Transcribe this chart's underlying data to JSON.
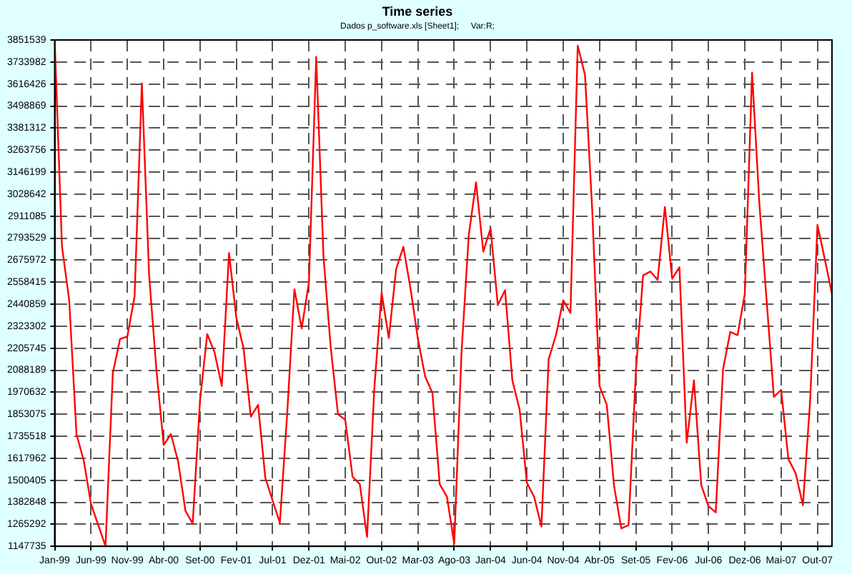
{
  "chart_data": {
    "type": "line",
    "title": "Time series",
    "subtitle": "Dados p_software.xls [Sheet1];     Var:R;",
    "x": [
      "1999-01",
      "1999-02",
      "1999-03",
      "1999-04",
      "1999-05",
      "1999-06",
      "1999-07",
      "1999-08",
      "1999-09",
      "1999-10",
      "1999-11",
      "1999-12",
      "2000-01",
      "2000-02",
      "2000-03",
      "2000-04",
      "2000-05",
      "2000-06",
      "2000-07",
      "2000-08",
      "2000-09",
      "2000-10",
      "2000-11",
      "2000-12",
      "2001-01",
      "2001-02",
      "2001-03",
      "2001-04",
      "2001-05",
      "2001-06",
      "2001-07",
      "2001-08",
      "2001-09",
      "2001-10",
      "2001-11",
      "2001-12",
      "2002-01",
      "2002-02",
      "2002-03",
      "2002-04",
      "2002-05",
      "2002-06",
      "2002-07",
      "2002-08",
      "2002-09",
      "2002-10",
      "2002-11",
      "2002-12",
      "2003-01",
      "2003-02",
      "2003-03",
      "2003-04",
      "2003-05",
      "2003-06",
      "2003-07",
      "2003-08",
      "2003-09",
      "2003-10",
      "2003-11",
      "2003-12",
      "2004-01",
      "2004-02",
      "2004-03",
      "2004-04",
      "2004-05",
      "2004-06",
      "2004-07",
      "2004-08",
      "2004-09",
      "2004-10",
      "2004-11",
      "2004-12",
      "2005-01",
      "2005-02",
      "2005-03",
      "2005-04",
      "2005-05",
      "2005-06",
      "2005-07",
      "2005-08",
      "2005-09",
      "2005-10",
      "2005-11",
      "2005-12",
      "2006-01",
      "2006-02",
      "2006-03",
      "2006-04",
      "2006-05",
      "2006-06",
      "2006-07",
      "2006-08",
      "2006-09",
      "2006-10",
      "2006-11",
      "2006-12",
      "2007-01",
      "2007-02",
      "2007-03",
      "2007-04",
      "2007-05",
      "2007-06",
      "2007-07",
      "2007-08",
      "2007-09",
      "2007-10",
      "2007-11",
      "2007-12"
    ],
    "series": [
      {
        "color": "#ff0000",
        "values": [
          3851539,
          2751000,
          2462000,
          1747000,
          1606000,
          1374000,
          1261000,
          1148000,
          2072000,
          2255000,
          2268000,
          2482000,
          3620000,
          2595000,
          2092000,
          1689000,
          1747000,
          1600000,
          1337000,
          1269000,
          1923000,
          2281000,
          2185000,
          2004000,
          2714000,
          2369000,
          2205000,
          1840000,
          1903000,
          1512000,
          1392000,
          1274000,
          1853000,
          2520000,
          2311000,
          2557000,
          3761000,
          2696000,
          2210000,
          1853000,
          1823000,
          1520000,
          1480000,
          1198000,
          1991000,
          2502000,
          2260000,
          2628000,
          2747000,
          2520000,
          2255000,
          2054000,
          1966000,
          1480000,
          1412000,
          1161000,
          2180000,
          2809000,
          3091000,
          2721000,
          2846000,
          2436000,
          2515000,
          2034000,
          1878000,
          1487000,
          1412000,
          1253000,
          2147000,
          2275000,
          2462000,
          2394000,
          3821000,
          3665000,
          2940000,
          2004000,
          1903000,
          1470000,
          1243000,
          1261000,
          2079000,
          2595000,
          2615000,
          2570000,
          2960000,
          2577000,
          2638000,
          1701000,
          2034000,
          1475000,
          1362000,
          1329000,
          2092000,
          2293000,
          2275000,
          2495000,
          3677000,
          2980000,
          2462000,
          1946000,
          1983000,
          1613000,
          1538000,
          1367000,
          1928000,
          2864000,
          2683000,
          2495000
        ]
      }
    ],
    "xlim": [
      "1999-01",
      "2007-12"
    ],
    "xticks": [
      {
        "value": "1999-01",
        "label": "Jan-99"
      },
      {
        "value": "1999-06",
        "label": "Jun-99"
      },
      {
        "value": "1999-11",
        "label": "Nov-99"
      },
      {
        "value": "2000-04",
        "label": "Abr-00"
      },
      {
        "value": "2000-09",
        "label": "Set-00"
      },
      {
        "value": "2001-02",
        "label": "Fev-01"
      },
      {
        "value": "2001-07",
        "label": "Jul-01"
      },
      {
        "value": "2001-12",
        "label": "Dez-01"
      },
      {
        "value": "2002-05",
        "label": "Mai-02"
      },
      {
        "value": "2002-10",
        "label": "Out-02"
      },
      {
        "value": "2003-03",
        "label": "Mar-03"
      },
      {
        "value": "2003-08",
        "label": "Ago-03"
      },
      {
        "value": "2004-01",
        "label": "Jan-04"
      },
      {
        "value": "2004-06",
        "label": "Jun-04"
      },
      {
        "value": "2004-11",
        "label": "Nov-04"
      },
      {
        "value": "2005-04",
        "label": "Abr-05"
      },
      {
        "value": "2005-09",
        "label": "Set-05"
      },
      {
        "value": "2006-02",
        "label": "Fev-06"
      },
      {
        "value": "2006-07",
        "label": "Jul-06"
      },
      {
        "value": "2006-12",
        "label": "Dez-06"
      },
      {
        "value": "2007-05",
        "label": "Mai-07"
      },
      {
        "value": "2007-10",
        "label": "Out-07"
      }
    ],
    "ylim": [
      1147735,
      3851539
    ],
    "yticks": [
      1147735,
      1265292,
      1382848,
      1500405,
      1617962,
      1735518,
      1853075,
      1970632,
      2088189,
      2205745,
      2323302,
      2440859,
      2558415,
      2675972,
      2793529,
      2911085,
      3028642,
      3146199,
      3263756,
      3381312,
      3498869,
      3616426,
      3733982,
      3851539
    ],
    "grid": true,
    "marker": "none",
    "line_style": "solid"
  }
}
